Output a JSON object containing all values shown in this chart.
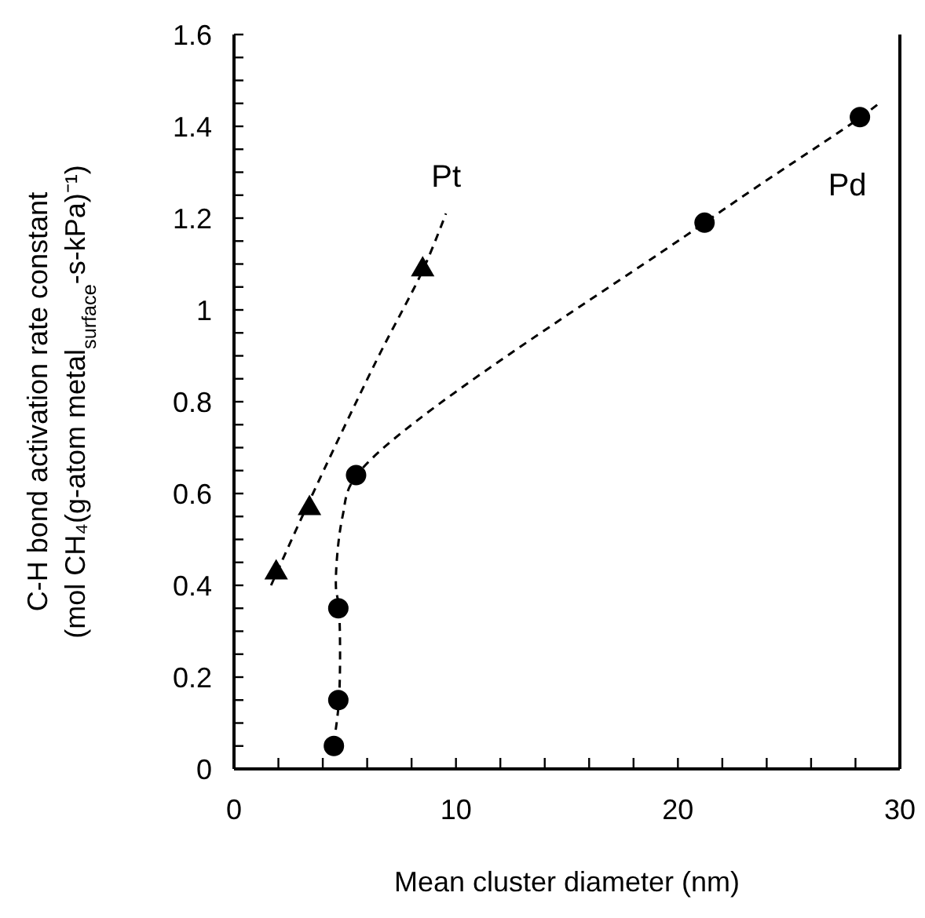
{
  "chart_data": {
    "type": "scatter",
    "xlabel": "Mean cluster diameter (nm)",
    "ylabel": "C-H bond activation rate constant\n(mol CH₄(g-atom metal$_{surface}$-s-kPa)⁻¹)",
    "xlim": [
      0,
      30
    ],
    "ylim": [
      0,
      1.6
    ],
    "xticks": [
      0,
      {
        "value": 2,
        "label": null
      },
      {
        "value": 4,
        "label": null
      },
      {
        "value": 6,
        "label": null
      },
      {
        "value": 8,
        "label": null
      },
      10,
      {
        "value": 12,
        "label": null
      },
      {
        "value": 14,
        "label": null
      },
      {
        "value": 16,
        "label": null
      },
      {
        "value": 18,
        "label": null
      },
      20,
      {
        "value": 22,
        "label": null
      },
      {
        "value": 24,
        "label": null
      },
      {
        "value": 26,
        "label": null
      },
      {
        "value": 28,
        "label": null
      },
      30
    ],
    "yticks": [
      0,
      {
        "value": 0.05,
        "label": null
      },
      {
        "value": 0.1,
        "label": null
      },
      {
        "value": 0.15,
        "label": null
      },
      0.2,
      {
        "value": 0.25,
        "label": null
      },
      {
        "value": 0.3,
        "label": null
      },
      {
        "value": 0.35,
        "label": null
      },
      0.4,
      {
        "value": 0.45,
        "label": null
      },
      {
        "value": 0.5,
        "label": null
      },
      {
        "value": 0.55,
        "label": null
      },
      0.6,
      {
        "value": 0.65,
        "label": null
      },
      {
        "value": 0.7,
        "label": null
      },
      {
        "value": 0.75,
        "label": null
      },
      0.8,
      {
        "value": 0.85,
        "label": null
      },
      {
        "value": 0.9,
        "label": null
      },
      {
        "value": 0.95,
        "label": null
      },
      1,
      {
        "value": 1.05,
        "label": null
      },
      {
        "value": 1.1,
        "label": null
      },
      {
        "value": 1.15,
        "label": null
      },
      1.2,
      {
        "value": 1.25,
        "label": null
      },
      {
        "value": 1.3,
        "label": null
      },
      {
        "value": 1.35,
        "label": null
      },
      1.4,
      {
        "value": 1.45,
        "label": null
      },
      {
        "value": 1.5,
        "label": null
      },
      {
        "value": 1.55,
        "label": null
      },
      1.6
    ],
    "grid": false,
    "series": [
      {
        "type": "line",
        "color": "#000000",
        "marker": "none",
        "line_style": "dashed",
        "x": [
          1.67,
          3.36,
          6.42,
          8.54,
          9.55
        ],
        "values": [
          0.4,
          0.58,
          0.89,
          1.09,
          1.21
        ]
      },
      {
        "type": "line",
        "color": "#000000",
        "marker": "none",
        "line_style": "dashed",
        "x": [
          4.49,
          4.73,
          4.73,
          4.59,
          4.89,
          5.53,
          21.2,
          28.24,
          29.06
        ],
        "values": [
          0.055,
          0.15,
          0.35,
          0.4,
          0.55,
          0.64,
          1.19,
          1.42,
          1.45
        ]
      },
      {
        "name": "Pt",
        "color": "#000000",
        "marker": "triangle",
        "x": [
          1.9,
          3.4,
          8.5
        ],
        "values": [
          0.43,
          0.57,
          1.09
        ]
      },
      {
        "name": "Pd",
        "color": "#000000",
        "marker": "circle",
        "x": [
          4.5,
          4.7,
          4.7,
          5.5,
          21.2,
          28.2
        ],
        "values": [
          0.05,
          0.15,
          0.35,
          0.64,
          1.19,
          1.42
        ]
      }
    ]
  }
}
